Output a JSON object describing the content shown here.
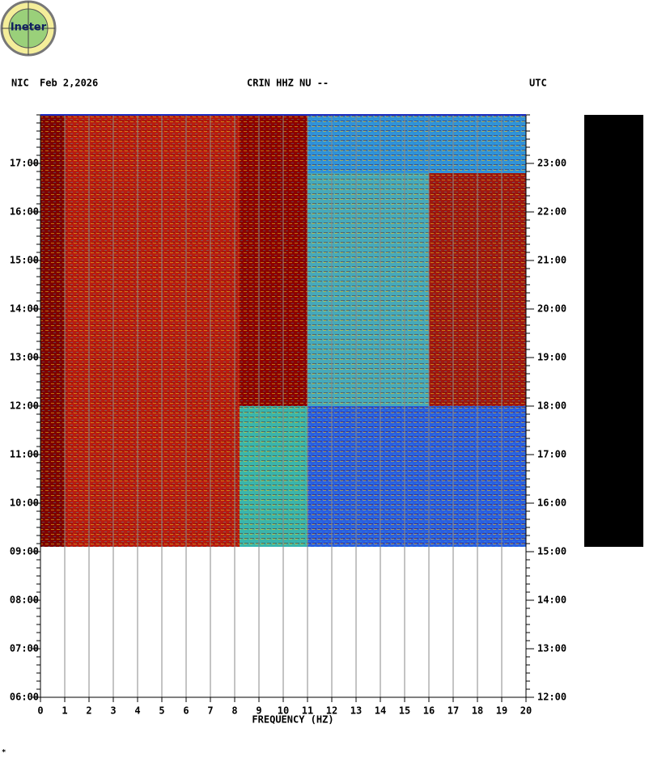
{
  "logo": {
    "text": "Ineter"
  },
  "header": {
    "network": "NIC",
    "date": "Feb 2,2026",
    "station": "CRIN HHZ NU --",
    "timezone": "UTC"
  },
  "footnote": "*",
  "chart_data": {
    "type": "spectrogram",
    "xlabel": "FREQUENCY (HZ)",
    "xlim": [
      0,
      20
    ],
    "xticks": [
      0,
      1,
      2,
      3,
      4,
      5,
      6,
      7,
      8,
      9,
      10,
      11,
      12,
      13,
      14,
      15,
      16,
      17,
      18,
      19,
      20
    ],
    "ylim": [
      6,
      18
    ],
    "yticks": [
      {
        "value": 6,
        "label": "06:00"
      },
      {
        "value": 7,
        "label": "07:00"
      },
      {
        "value": 8,
        "label": "08:00"
      },
      {
        "value": 9,
        "label": "09:00"
      },
      {
        "value": 10,
        "label": "10:00"
      },
      {
        "value": 11,
        "label": "11:00"
      },
      {
        "value": 12,
        "label": "12:00"
      },
      {
        "value": 13,
        "label": "13:00"
      },
      {
        "value": 14,
        "label": "14:00"
      },
      {
        "value": 15,
        "label": "15:00"
      },
      {
        "value": 16,
        "label": "16:00"
      },
      {
        "value": 17,
        "label": "17:00"
      }
    ],
    "y2lim": [
      12,
      24
    ],
    "y2ticks": [
      {
        "value": 12,
        "label": "12:00"
      },
      {
        "value": 13,
        "label": "13:00"
      },
      {
        "value": 14,
        "label": "14:00"
      },
      {
        "value": 15,
        "label": "15:00"
      },
      {
        "value": 16,
        "label": "16:00"
      },
      {
        "value": 17,
        "label": "17:00"
      },
      {
        "value": 18,
        "label": "18:00"
      },
      {
        "value": 19,
        "label": "19:00"
      },
      {
        "value": 20,
        "label": "20:00"
      },
      {
        "value": 21,
        "label": "21:00"
      },
      {
        "value": 22,
        "label": "22:00"
      },
      {
        "value": 23,
        "label": "23:00"
      }
    ],
    "grid": true,
    "regions": [
      {
        "freq": [
          0,
          1
        ],
        "hours": [
          9.1,
          18
        ],
        "color": "#800000"
      },
      {
        "freq": [
          1,
          8.2
        ],
        "hours": [
          9.1,
          18
        ],
        "color": "#b81c10"
      },
      {
        "freq": [
          8.2,
          11
        ],
        "hours": [
          12,
          18
        ],
        "color": "#8e0000"
      },
      {
        "freq": [
          8.2,
          11
        ],
        "hours": [
          9.1,
          12
        ],
        "color": "#3cb4a8"
      },
      {
        "freq": [
          11,
          20
        ],
        "hours": [
          16.8,
          18
        ],
        "color": "#3090d8"
      },
      {
        "freq": [
          11,
          16
        ],
        "hours": [
          12,
          16.8
        ],
        "color": "#48a8b8"
      },
      {
        "freq": [
          16,
          20
        ],
        "hours": [
          12,
          16.8
        ],
        "color": "#a01810"
      },
      {
        "freq": [
          11,
          20
        ],
        "hours": [
          9.1,
          12
        ],
        "color": "#2a5ee0"
      }
    ]
  }
}
